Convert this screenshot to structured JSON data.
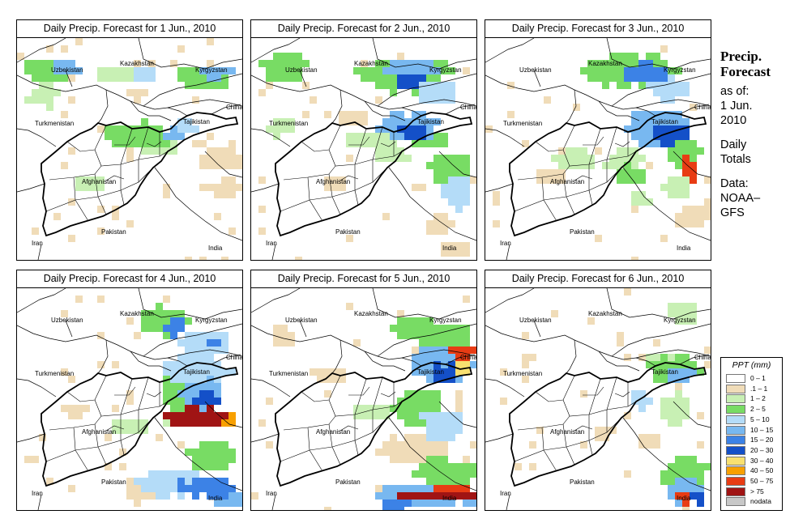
{
  "panels": [
    {
      "title": "Daily Precip. Forecast for  1 Jun., 2010",
      "day": 1
    },
    {
      "title": "Daily Precip. Forecast for  2 Jun., 2010",
      "day": 2
    },
    {
      "title": "Daily Precip. Forecast for  3 Jun., 2010",
      "day": 3
    },
    {
      "title": "Daily Precip. Forecast for  4 Jun., 2010",
      "day": 4
    },
    {
      "title": "Daily Precip. Forecast for  5 Jun., 2010",
      "day": 5
    },
    {
      "title": "Daily Precip. Forecast for  6 Jun., 2010",
      "day": 6
    }
  ],
  "countries": {
    "uzbekistan": "Uzbekistan",
    "kazakhstan": "Kazakhstan",
    "kyrgyzstan": "Kyrgyzstan",
    "china": "China",
    "turkmenistan": "Turkmenistan",
    "tajikistan": "Tajikistan",
    "afghanistan": "Afghanistan",
    "iran": "Iran",
    "pakistan": "Pakistan",
    "india": "India"
  },
  "side": {
    "heading1": "Precip.",
    "heading2": "Forecast",
    "as_of": "as of:",
    "date1": "1 Jun.",
    "date2": "2010",
    "daily": "Daily",
    "totals": "Totals",
    "data": "Data:",
    "source1": "NOAA–",
    "source2": "GFS"
  },
  "legend": {
    "title": "PPT (mm)",
    "items": [
      {
        "label": "0 – 1",
        "color": "#ffffff"
      },
      {
        "label": ".1 – 1",
        "color": "#f0dcb8"
      },
      {
        "label": "1 – 2",
        "color": "#c8f0b4"
      },
      {
        "label": "2 – 5",
        "color": "#78dc64"
      },
      {
        "label": "5 – 10",
        "color": "#b4dcf8"
      },
      {
        "label": "10 – 15",
        "color": "#78b8f0"
      },
      {
        "label": "15 – 20",
        "color": "#3c82e6"
      },
      {
        "label": "20 – 30",
        "color": "#1450c8"
      },
      {
        "label": "30 – 40",
        "color": "#f8e070"
      },
      {
        "label": "40 – 50",
        "color": "#f8a000"
      },
      {
        "label": "50 – 75",
        "color": "#e83c14"
      },
      {
        "label": "> 75",
        "color": "#a01414"
      },
      {
        "label": "nodata",
        "color": "#c8c8c8"
      }
    ]
  }
}
